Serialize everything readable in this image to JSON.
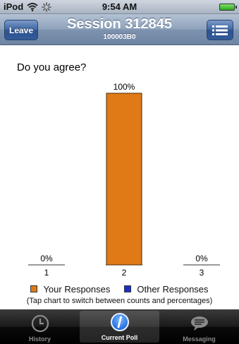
{
  "status_bar": {
    "carrier": "iPod",
    "time": "9:54 AM"
  },
  "nav": {
    "leave_label": "Leave",
    "title": "Session 312845",
    "subtitle": "100003B0"
  },
  "question": "Do you agree?",
  "chart_data": {
    "type": "bar",
    "categories": [
      "1",
      "2",
      "3"
    ],
    "series": [
      {
        "name": "Your Responses",
        "values": [
          0,
          100,
          0
        ],
        "color": "#e07a17"
      },
      {
        "name": "Other Responses",
        "values": [
          0,
          0,
          0
        ],
        "color": "#1a2fd0"
      }
    ],
    "data_labels": [
      "0%",
      "100%",
      "0%"
    ],
    "ylim": [
      0,
      100
    ],
    "grid": false,
    "legend": "bottom"
  },
  "legend": {
    "your_label": "Your Responses",
    "other_label": "Other Responses",
    "your_color": "#e07a17",
    "other_color": "#1a2fd0"
  },
  "hint": "(Tap chart to switch between counts and percentages)",
  "tabs": [
    {
      "label": "History",
      "icon": "clock-icon"
    },
    {
      "label": "Current Poll",
      "icon": "info-icon"
    },
    {
      "label": "Messaging",
      "icon": "speech-bubble-icon"
    }
  ]
}
